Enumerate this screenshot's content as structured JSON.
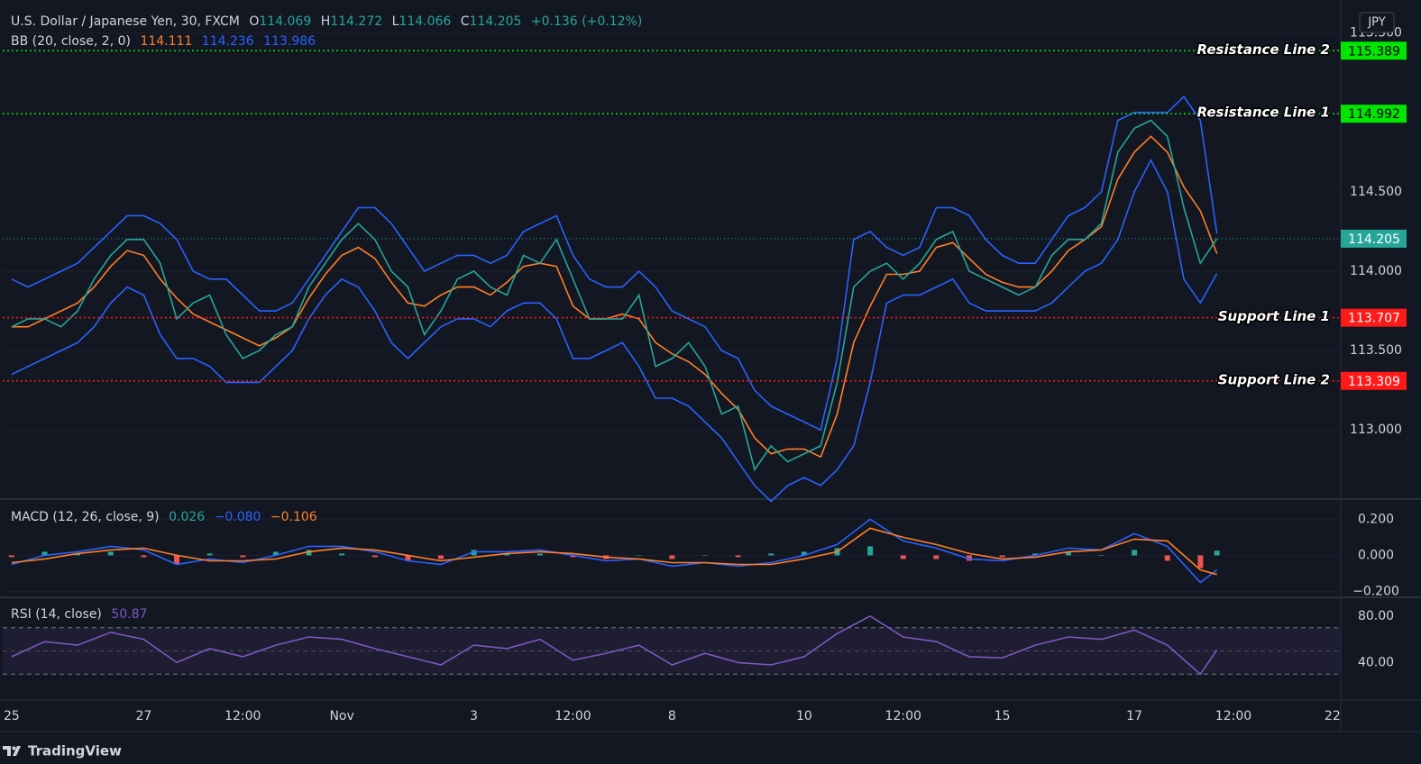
{
  "chart_data": [
    {
      "type": "line",
      "legend": {
        "title": "U.S. Dollar / Japanese Yen, 30, FXCM",
        "fields": [
          {
            "key": "O",
            "value": "114.069"
          },
          {
            "key": "H",
            "value": "114.272"
          },
          {
            "key": "L",
            "value": "114.066"
          },
          {
            "key": "C",
            "value": "114.205"
          }
        ],
        "change": "+0.136 (+0.12%)",
        "indicator": "BB (20, close, 2, 0)",
        "indicator_values": [
          "114.111",
          "114.236",
          "113.986"
        ]
      },
      "currency": "JPY",
      "xlim": [
        -0.27,
        40.25
      ],
      "xticks": [
        {
          "value": 0,
          "label": "25"
        },
        {
          "value": 4,
          "label": "27"
        },
        {
          "value": 7,
          "label": "12:00"
        },
        {
          "value": 10,
          "label": "Nov"
        },
        {
          "value": 14,
          "label": "3"
        },
        {
          "value": 17,
          "label": "12:00"
        },
        {
          "value": 20,
          "label": "8"
        },
        {
          "value": 24,
          "label": "10"
        },
        {
          "value": 27,
          "label": "12:00"
        },
        {
          "value": 30,
          "label": "15"
        },
        {
          "value": 34,
          "label": "17"
        },
        {
          "value": 37,
          "label": "12:00"
        },
        {
          "value": 40,
          "label": "22"
        }
      ],
      "ylim": [
        112.57,
        115.68
      ],
      "yticks": [
        {
          "value": 115.5,
          "label": "115.500"
        },
        {
          "value": 114.5,
          "label": "114.500"
        },
        {
          "value": 114,
          "label": "114.000"
        },
        {
          "value": 113.5,
          "label": "113.500"
        },
        {
          "value": 113,
          "label": "113.000"
        }
      ],
      "grid": true,
      "x": [
        0,
        0.5,
        1,
        1.5,
        2,
        2.5,
        3,
        3.5,
        4,
        4.5,
        5,
        5.5,
        6,
        6.5,
        7,
        7.5,
        8,
        8.5,
        9,
        9.5,
        10,
        10.5,
        11,
        11.5,
        12,
        12.5,
        13,
        13.5,
        14,
        14.5,
        15,
        15.5,
        16,
        16.5,
        17,
        17.5,
        18,
        18.5,
        19,
        19.5,
        20,
        20.5,
        21,
        21.5,
        22,
        22.5,
        23,
        23.5,
        24,
        24.5,
        25,
        25.5,
        26,
        26.5,
        27,
        27.5,
        28,
        28.5,
        29,
        29.5,
        30,
        30.5,
        31,
        31.5,
        32,
        32.5,
        33,
        33.5,
        34,
        34.5,
        35,
        35.5,
        36,
        36.5
      ],
      "series": [
        {
          "color": "#2962ff",
          "values": [
            113.95,
            113.9,
            113.95,
            114.0,
            114.05,
            114.15,
            114.25,
            114.35,
            114.35,
            114.3,
            114.2,
            114.0,
            113.95,
            113.95,
            113.85,
            113.75,
            113.75,
            113.8,
            113.95,
            114.1,
            114.25,
            114.4,
            114.4,
            114.3,
            114.15,
            114.0,
            114.05,
            114.1,
            114.1,
            114.05,
            114.1,
            114.25,
            114.3,
            114.35,
            114.1,
            113.95,
            113.9,
            113.9,
            114.0,
            113.9,
            113.75,
            113.7,
            113.65,
            113.5,
            113.45,
            113.25,
            113.15,
            113.1,
            113.05,
            113.0,
            113.45,
            114.2,
            114.25,
            114.15,
            114.1,
            114.15,
            114.4,
            114.4,
            114.35,
            114.2,
            114.1,
            114.05,
            114.05,
            114.2,
            114.35,
            114.4,
            114.5,
            114.95,
            115.0,
            115.0,
            115.0,
            115.1,
            114.95,
            114.236
          ]
        },
        {
          "color": "#2962ff",
          "values": [
            113.35,
            113.4,
            113.45,
            113.5,
            113.55,
            113.65,
            113.8,
            113.9,
            113.85,
            113.6,
            113.45,
            113.45,
            113.4,
            113.3,
            113.3,
            113.3,
            113.4,
            113.5,
            113.7,
            113.85,
            113.95,
            113.9,
            113.75,
            113.55,
            113.45,
            113.55,
            113.65,
            113.7,
            113.7,
            113.65,
            113.75,
            113.8,
            113.8,
            113.7,
            113.45,
            113.45,
            113.5,
            113.55,
            113.4,
            113.2,
            113.2,
            113.15,
            113.05,
            112.95,
            112.8,
            112.65,
            112.55,
            112.65,
            112.7,
            112.65,
            112.75,
            112.9,
            113.3,
            113.8,
            113.85,
            113.85,
            113.9,
            113.95,
            113.8,
            113.75,
            113.75,
            113.75,
            113.75,
            113.8,
            113.9,
            114.0,
            114.05,
            114.2,
            114.5,
            114.7,
            114.5,
            113.95,
            113.8,
            113.986
          ]
        },
        {
          "color": "#ff7f27",
          "values": [
            113.65,
            113.65,
            113.7,
            113.75,
            113.8,
            113.9,
            114.03,
            114.13,
            114.1,
            113.95,
            113.83,
            113.73,
            113.68,
            113.63,
            113.58,
            113.53,
            113.58,
            113.65,
            113.83,
            113.98,
            114.1,
            114.15,
            114.08,
            113.93,
            113.8,
            113.78,
            113.85,
            113.9,
            113.9,
            113.85,
            113.93,
            114.03,
            114.05,
            114.03,
            113.78,
            113.7,
            113.7,
            113.73,
            113.7,
            113.55,
            113.48,
            113.43,
            113.35,
            113.23,
            113.13,
            112.95,
            112.85,
            112.88,
            112.88,
            112.83,
            113.1,
            113.55,
            113.78,
            113.98,
            113.98,
            114.0,
            114.15,
            114.18,
            114.08,
            113.98,
            113.93,
            113.9,
            113.9,
            114.0,
            114.13,
            114.2,
            114.28,
            114.58,
            114.75,
            114.85,
            114.75,
            114.53,
            114.38,
            114.111
          ]
        },
        {
          "color": "#26a69a",
          "values": [
            113.65,
            113.7,
            113.7,
            113.65,
            113.75,
            113.95,
            114.1,
            114.2,
            114.2,
            114.05,
            113.7,
            113.8,
            113.85,
            113.6,
            113.45,
            113.5,
            113.6,
            113.65,
            113.9,
            114.05,
            114.2,
            114.3,
            114.2,
            114.0,
            113.9,
            113.6,
            113.75,
            113.95,
            114.0,
            113.9,
            113.85,
            114.1,
            114.05,
            114.2,
            113.95,
            113.7,
            113.7,
            113.7,
            113.85,
            113.4,
            113.45,
            113.55,
            113.4,
            113.1,
            113.15,
            112.75,
            112.9,
            112.8,
            112.85,
            112.9,
            113.3,
            113.9,
            114.0,
            114.05,
            113.95,
            114.05,
            114.2,
            114.25,
            114.0,
            113.95,
            113.9,
            113.85,
            113.9,
            114.1,
            114.2,
            114.2,
            114.3,
            114.75,
            114.9,
            114.95,
            114.85,
            114.4,
            114.05,
            114.205
          ]
        }
      ],
      "lines": [
        {
          "label": "Resistance Line 2",
          "value": 115.389,
          "color": "#00e600"
        },
        {
          "label": "Resistance Line 1",
          "value": 114.992,
          "color": "#00e600"
        },
        {
          "label": "Support Line 1",
          "value": 113.707,
          "color": "#ff1a1a"
        },
        {
          "label": "Support Line 2",
          "value": 113.309,
          "color": "#ff1a1a"
        }
      ],
      "last_price": {
        "value": 114.205,
        "color": "#26a69a"
      }
    },
    {
      "type": "line",
      "legend": {
        "indicator": "MACD (12, 26, close, 9)",
        "indicator_values": [
          "0.026",
          "−0.080",
          "−0.106"
        ]
      },
      "ylim": [
        -0.227,
        0.301
      ],
      "yticks": [
        {
          "value": 0.2,
          "label": "0.200"
        },
        {
          "value": 0,
          "label": "0.000"
        },
        {
          "value": -0.2,
          "label": "−0.200"
        }
      ],
      "grid": true,
      "x": [
        0,
        1,
        2,
        3,
        4,
        5,
        6,
        7,
        8,
        9,
        10,
        11,
        12,
        13,
        14,
        15,
        16,
        17,
        18,
        19,
        20,
        21,
        22,
        23,
        24,
        25,
        26,
        27,
        28,
        29,
        30,
        31,
        32,
        33,
        34,
        35,
        36,
        36.5
      ],
      "series": [
        {
          "type": "bar",
          "colors": {
            "positive": "#26a69a",
            "negative": "#ef5350"
          },
          "values": [
            -0.01,
            0.02,
            0.01,
            0.02,
            -0.01,
            -0.05,
            0.01,
            -0.01,
            0.02,
            0.03,
            0.01,
            -0.01,
            -0.03,
            -0.02,
            0.03,
            0.01,
            0.01,
            -0.01,
            -0.02,
            0.0,
            -0.02,
            0.0,
            -0.01,
            0.01,
            0.02,
            0.04,
            0.05,
            -0.02,
            -0.02,
            -0.03,
            -0.01,
            0.01,
            0.02,
            0.0,
            0.03,
            -0.03,
            -0.07,
            0.026
          ]
        },
        {
          "color": "#2962ff",
          "values": [
            -0.05,
            0.0,
            0.02,
            0.05,
            0.03,
            -0.05,
            -0.02,
            -0.04,
            0.0,
            0.05,
            0.05,
            0.02,
            -0.03,
            -0.05,
            0.02,
            0.02,
            0.03,
            0.0,
            -0.03,
            -0.02,
            -0.06,
            -0.04,
            -0.06,
            -0.04,
            0.0,
            0.06,
            0.2,
            0.08,
            0.04,
            -0.02,
            -0.03,
            0.0,
            0.04,
            0.03,
            0.12,
            0.05,
            -0.15,
            -0.08
          ]
        },
        {
          "color": "#ff7f27",
          "values": [
            -0.04,
            -0.02,
            0.01,
            0.03,
            0.04,
            0.0,
            -0.03,
            -0.03,
            -0.02,
            0.02,
            0.04,
            0.03,
            0.0,
            -0.03,
            -0.01,
            0.01,
            0.02,
            0.01,
            -0.01,
            -0.02,
            -0.04,
            -0.04,
            -0.05,
            -0.05,
            -0.02,
            0.02,
            0.15,
            0.1,
            0.06,
            0.01,
            -0.02,
            -0.01,
            0.02,
            0.03,
            0.09,
            0.08,
            -0.08,
            -0.106
          ]
        }
      ]
    },
    {
      "type": "line",
      "legend": {
        "indicator": "RSI (14, close)",
        "indicator_values": [
          "50.87"
        ]
      },
      "ylim": [
        8.5,
        94.6
      ],
      "yticks": [
        {
          "value": 80,
          "label": "80.00"
        },
        {
          "value": 40,
          "label": "40.00"
        }
      ],
      "grid": false,
      "bands": [
        30,
        70
      ],
      "midline": 50,
      "band_color": "#7e57c2",
      "x": [
        0,
        1,
        2,
        3,
        4,
        5,
        6,
        7,
        8,
        9,
        10,
        11,
        12,
        13,
        14,
        15,
        16,
        17,
        18,
        19,
        20,
        21,
        22,
        23,
        24,
        25,
        26,
        27,
        28,
        29,
        30,
        31,
        32,
        33,
        34,
        35,
        36,
        36.5
      ],
      "series": [
        {
          "color": "#7e57c2",
          "values": [
            45,
            58,
            55,
            66,
            60,
            40,
            52,
            45,
            55,
            62,
            60,
            52,
            45,
            38,
            55,
            52,
            60,
            42,
            48,
            55,
            38,
            48,
            40,
            38,
            45,
            65,
            80,
            62,
            58,
            45,
            44,
            55,
            62,
            60,
            68,
            55,
            30,
            50.87
          ]
        }
      ]
    }
  ],
  "footer": {
    "brand": "TradingView"
  }
}
